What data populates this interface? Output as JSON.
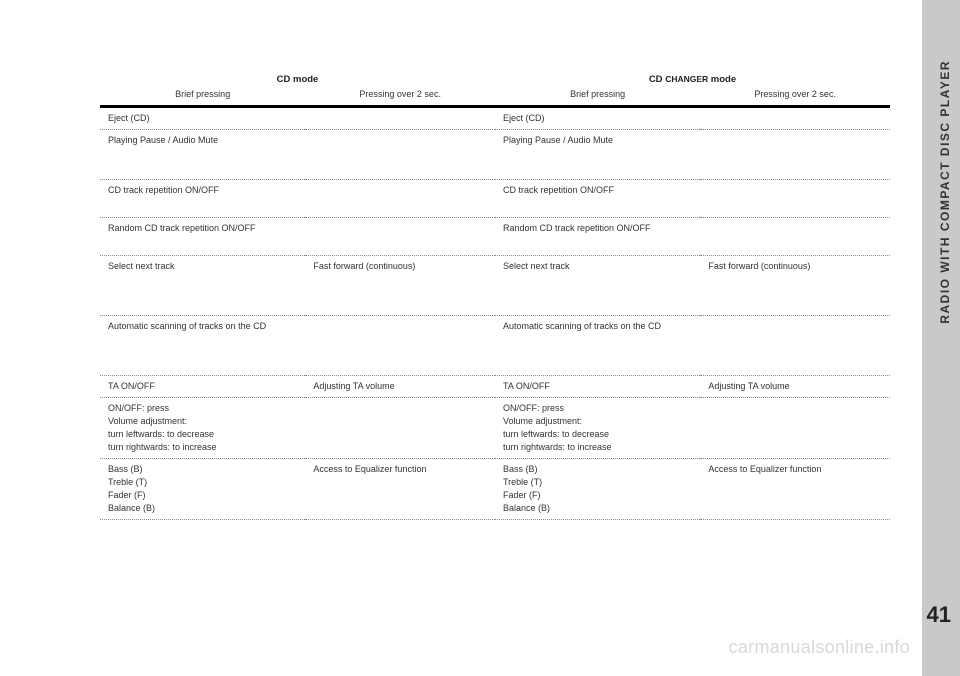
{
  "sidebar": {
    "title": "RADIO WITH COMPACT DISC PLAYER",
    "page_number": "41"
  },
  "watermark": "carmanualsonline.info",
  "table": {
    "modes": {
      "cd": "CD mode",
      "cdchanger_prefix": "CD ",
      "cdchanger_small": "CHANGER",
      "cdchanger_suffix": " mode"
    },
    "subheads": {
      "brief": "Brief pressing",
      "over2": "Pressing over 2 sec."
    },
    "rows": [
      {
        "h": "short",
        "c1": "Eject (CD)",
        "c2": "",
        "c3": "Eject (CD)",
        "c4": ""
      },
      {
        "h": "tall",
        "c1": "Playing Pause / Audio Mute",
        "c2": "",
        "c3": "Playing Pause / Audio Mute",
        "c4": ""
      },
      {
        "h": "med",
        "c1": "CD track repetition ON/OFF",
        "c2": "",
        "c3": "CD track repetition ON/OFF",
        "c4": ""
      },
      {
        "h": "med",
        "c1": "Random CD track repetition ON/OFF",
        "c2": "",
        "c3": "Random CD track repetition ON/OFF",
        "c4": ""
      },
      {
        "h": "xtall",
        "c1": "Select next track",
        "c2": "Fast forward (continuous)",
        "c3": "Select next track",
        "c4": "Fast forward (continuous)"
      },
      {
        "h": "xtall",
        "c1": "Automatic scanning of tracks on the CD",
        "c2": "",
        "c3": "Automatic scanning of tracks on the CD",
        "c4": ""
      },
      {
        "h": "short",
        "c1": "TA ON/OFF",
        "c2": "Adjusting TA volume",
        "c3": "TA ON/OFF",
        "c4": "Adjusting TA volume"
      },
      {
        "h": "tall",
        "c1": "ON/OFF: press\nVolume adjustment:\nturn leftwards: to decrease\nturn rightwards: to increase",
        "c2": "",
        "c3": "ON/OFF: press\nVolume adjustment:\nturn leftwards: to decrease\nturn rightwards: to increase",
        "c4": ""
      },
      {
        "h": "tall",
        "c1": "Bass (B)\nTreble (T)\nFader (F)\nBalance (B)",
        "c2": "Access to Equalizer function",
        "c3": "Bass (B)\nTreble (T)\nFader (F)\nBalance (B)",
        "c4": "Access to Equalizer function"
      }
    ]
  }
}
